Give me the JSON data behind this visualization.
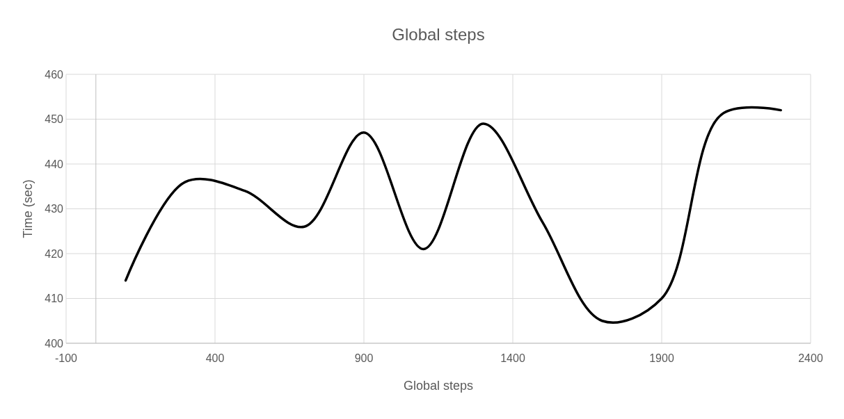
{
  "chart_data": {
    "type": "line",
    "title": "Global steps",
    "xlabel": "Global steps",
    "ylabel": "Time (sec)",
    "x": [
      100,
      300,
      500,
      700,
      900,
      1100,
      1300,
      1500,
      1700,
      1900,
      2100,
      2300
    ],
    "series": [
      {
        "color": "#000000",
        "values": [
          414,
          436,
          434,
          426,
          447,
          421,
          449,
          427,
          405,
          410,
          451,
          452
        ]
      }
    ],
    "xlim": [
      -100,
      2400
    ],
    "xticks": [
      -100,
      400,
      900,
      1400,
      1900,
      2400
    ],
    "ylim": [
      400,
      460
    ],
    "yticks": [
      400,
      410,
      420,
      430,
      440,
      450,
      460
    ],
    "grid": true,
    "marker": "none",
    "line_style": "solid"
  }
}
